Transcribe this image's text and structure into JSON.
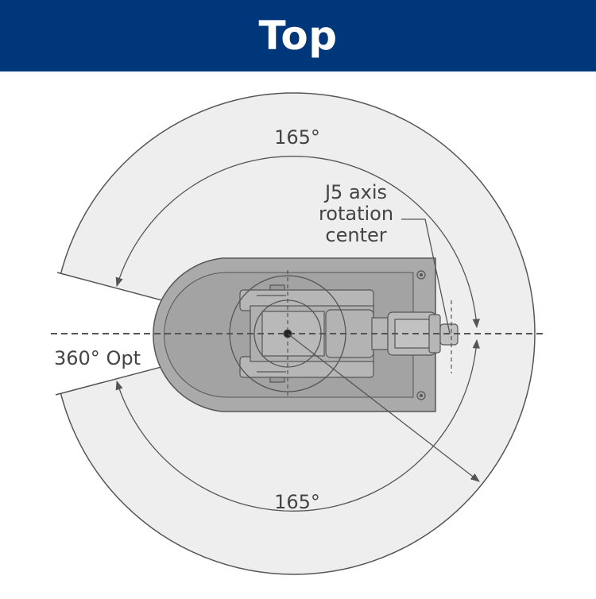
{
  "header": {
    "title": "Top"
  },
  "labels": {
    "angle_top": "165°",
    "angle_bottom": "165°",
    "option": "360° Opt",
    "j5_line1": "J5 axis",
    "j5_line2": "rotation",
    "j5_line3": "center"
  },
  "colors": {
    "header_bg": "#00377a",
    "workspace_fill": "#eeeeee",
    "robot_fill": "#aaaaaa",
    "line": "#555555"
  }
}
